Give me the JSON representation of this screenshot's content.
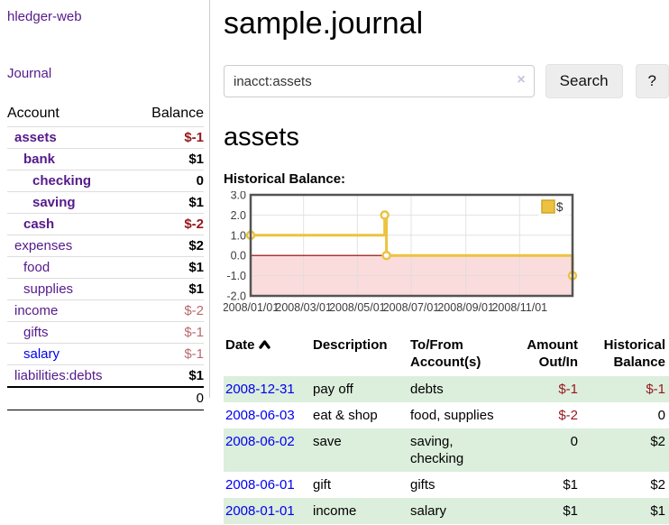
{
  "colors": {
    "link_purple": "#551a8b",
    "link_blue": "#0000ee",
    "negative": "#96171c",
    "negative_soft": "#b9696e",
    "row_green": "#dceedc",
    "chart_line": "#edc240",
    "chart_negative_region": "#fbdcdc",
    "zero_line": "#8b0000",
    "chart_border": "#545454",
    "grid_line": "#dcdcdc"
  },
  "sidebar": {
    "app_title": "hledger-web",
    "journal_link": "Journal",
    "account_header": "Account",
    "balance_header": "Balance",
    "accounts": [
      {
        "name": "assets",
        "balance": "$-1",
        "indent": 1,
        "bold": true,
        "balance_style": "neg",
        "link": "purple"
      },
      {
        "name": "bank",
        "balance": "$1",
        "indent": 2,
        "bold": true,
        "balance_style": "pos",
        "link": "purple"
      },
      {
        "name": "checking",
        "balance": "0",
        "indent": 3,
        "bold": true,
        "balance_style": "pos",
        "link": "purple"
      },
      {
        "name": "saving",
        "balance": "$1",
        "indent": 3,
        "bold": true,
        "balance_style": "pos",
        "link": "purple"
      },
      {
        "name": "cash",
        "balance": "$-2",
        "indent": 2,
        "bold": true,
        "balance_style": "neg",
        "link": "purple"
      },
      {
        "name": "expenses",
        "balance": "$2",
        "indent": 1,
        "bold": false,
        "balance_style": "pos",
        "link": "purple"
      },
      {
        "name": "food",
        "balance": "$1",
        "indent": 2,
        "bold": false,
        "balance_style": "pos",
        "link": "purple"
      },
      {
        "name": "supplies",
        "balance": "$1",
        "indent": 2,
        "bold": false,
        "balance_style": "pos",
        "link": "purple"
      },
      {
        "name": "income",
        "balance": "$-2",
        "indent": 1,
        "bold": false,
        "balance_style": "softneg",
        "link": "purple"
      },
      {
        "name": "gifts",
        "balance": "$-1",
        "indent": 2,
        "bold": false,
        "balance_style": "softneg",
        "link": "purple"
      },
      {
        "name": "salary",
        "balance": "$-1",
        "indent": 2,
        "bold": false,
        "balance_style": "softneg",
        "link": "blue"
      },
      {
        "name": "liabilities:debts",
        "balance": "$1",
        "indent": 1,
        "bold": false,
        "balance_style": "pos",
        "link": "purple"
      }
    ],
    "total": "0"
  },
  "main": {
    "title": "sample.journal",
    "search": {
      "value": "inacct:assets",
      "clear_icon": "×",
      "button_label": "Search",
      "help_label": "?"
    },
    "account_heading": "assets",
    "chart_heading": "Historical Balance:"
  },
  "chart_data": {
    "type": "line",
    "step": true,
    "title": "Historical Balance",
    "xlabel": "",
    "ylabel": "",
    "ylim": [
      -2,
      3
    ],
    "x_range": [
      "2008-01-01",
      "2008-12-31"
    ],
    "yticks": [
      "3.0",
      "2.0",
      "1.0",
      "0.0",
      "-1.0",
      "-2.0"
    ],
    "xticks": [
      "2008/01/01",
      "2008/03/01",
      "2008/05/01",
      "2008/07/01",
      "2008/09/01",
      "2008/11/01"
    ],
    "grid": true,
    "negative_region": true,
    "legend": {
      "position": "ne",
      "label": "$"
    },
    "series": [
      {
        "name": "$",
        "color": "#edc240",
        "points": [
          [
            "2008-01-01",
            1
          ],
          [
            "2008-06-01",
            2
          ],
          [
            "2008-06-03",
            0
          ],
          [
            "2008-12-31",
            -1
          ]
        ]
      }
    ]
  },
  "register": {
    "headers": {
      "date": "Date",
      "description": "Description",
      "accounts": "To/From Account(s)",
      "amount": "Amount Out/In",
      "balance": "Historical Balance"
    },
    "rows": [
      {
        "date": "2008-12-31",
        "description": "pay off",
        "accounts": "debts",
        "amount": "$-1",
        "balance": "$-1",
        "amount_negative": true,
        "balance_negative": true,
        "shaded": true
      },
      {
        "date": "2008-06-03",
        "description": "eat & shop",
        "accounts": "food, supplies",
        "amount": "$-2",
        "balance": "0",
        "amount_negative": true,
        "balance_negative": false,
        "shaded": false
      },
      {
        "date": "2008-06-02",
        "description": "save",
        "accounts": "saving, checking",
        "amount": "0",
        "balance": "$2",
        "amount_negative": false,
        "balance_negative": false,
        "shaded": true
      },
      {
        "date": "2008-06-01",
        "description": "gift",
        "accounts": "gifts",
        "amount": "$1",
        "balance": "$2",
        "amount_negative": false,
        "balance_negative": false,
        "shaded": false
      },
      {
        "date": "2008-01-01",
        "description": "income",
        "accounts": "salary",
        "amount": "$1",
        "balance": "$1",
        "amount_negative": false,
        "balance_negative": false,
        "shaded": true
      }
    ]
  }
}
